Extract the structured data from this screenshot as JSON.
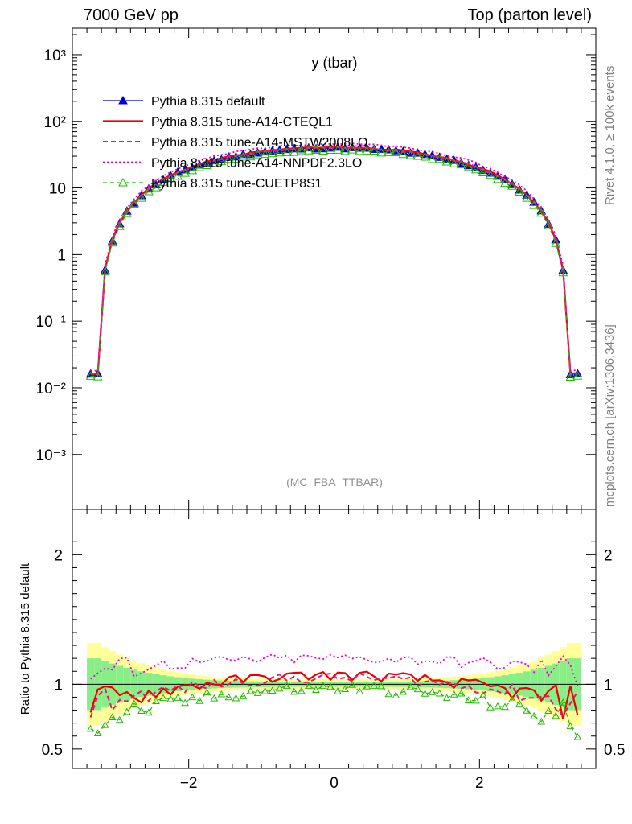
{
  "header": {
    "left": "7000 GeV pp",
    "right": "Top (parton level)"
  },
  "side_labels": {
    "rivet": "Rivet 4.1.0, ≥ 100k events",
    "mcplots": "mcplots.cern.ch [arXiv:1306.3436]"
  },
  "chart_data": [
    {
      "type": "line",
      "title": "y (tbar)",
      "watermark": "(MC_FBA_TTBAR)",
      "ylim": [
        0.00015,
        2500
      ],
      "xlim": [
        -3.6,
        3.6
      ],
      "yscale": "log",
      "ytick_labels": [
        "10⁻³",
        "10⁻²",
        "10⁻¹",
        "1",
        "10",
        "10²",
        "10³"
      ],
      "ytick_values": [
        0.001,
        0.01,
        0.1,
        1,
        10,
        100,
        1000
      ],
      "legend_placement": "top-left",
      "series": [
        {
          "name": "Pythia 8.315 default",
          "color": "#0000cc",
          "style": "solid-triangle"
        },
        {
          "name": "Pythia 8.315 tune-A14-CTEQL1",
          "color": "#ee0000",
          "style": "solid-thick"
        },
        {
          "name": "Pythia 8.315 tune-A14-MSTW2008LO",
          "color": "#ee1177",
          "style": "dashed"
        },
        {
          "name": "Pythia 8.315 tune-A14-NNPDF2.3LO",
          "color": "#ee00cc",
          "style": "dotted"
        },
        {
          "name": "Pythia 8.315 tune-CUETP8S1",
          "color": "#22bb00",
          "style": "dashed-open-triangle"
        }
      ],
      "peak_value": 40,
      "x_extent": 3.25
    },
    {
      "type": "line",
      "ylabel": "Ratio to Pythia 8.315 default",
      "ylim": [
        0.35,
        2.35
      ],
      "yticks": [
        0.5,
        1,
        2
      ],
      "ytick_labels": [
        "0.5",
        "1",
        "2"
      ],
      "xticks": [
        -2,
        0,
        2
      ],
      "xtick_labels": [
        "−2",
        "0",
        "2"
      ],
      "reference": 1,
      "series_ratio": [
        {
          "name": "Pythia 8.315 tune-A14-CTEQL1",
          "center_ratio": 1.07,
          "edge_ratio": 0.85
        },
        {
          "name": "Pythia 8.315 tune-A14-MSTW2008LO",
          "center_ratio": 1.05,
          "edge_ratio": 0.85
        },
        {
          "name": "Pythia 8.315 tune-A14-NNPDF2.3LO",
          "center_ratio": 1.2,
          "edge_ratio": 1.1
        },
        {
          "name": "Pythia 8.315 tune-CUETP8S1",
          "center_ratio": 0.97,
          "edge_ratio": 0.72
        }
      ]
    }
  ]
}
